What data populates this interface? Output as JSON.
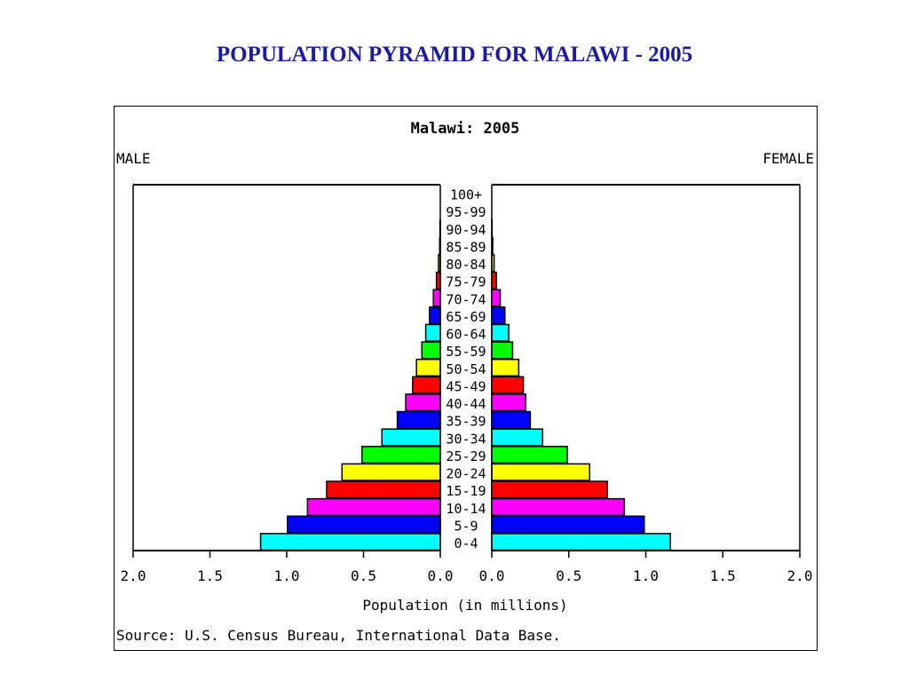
{
  "slide_title": "POPULATION PYRAMID FOR MALAWI - 2005",
  "chart_data": {
    "type": "bar",
    "orientation": "horizontal-pyramid",
    "title": "Malawi: 2005",
    "left_label": "MALE",
    "right_label": "FEMALE",
    "xlabel": "Population (in millions)",
    "source": "Source: U.S. Census Bureau, International Data Base.",
    "xlim": [
      0,
      2.0
    ],
    "left_ticks": [
      "2.0",
      "1.5",
      "1.0",
      "0.5",
      "0.0"
    ],
    "right_ticks": [
      "0.0",
      "0.5",
      "1.0",
      "1.5",
      "2.0"
    ],
    "tick_values": [
      2.0,
      1.5,
      1.0,
      0.5,
      0.0
    ],
    "categories": [
      "100+",
      "95-99",
      "90-94",
      "85-89",
      "80-84",
      "75-79",
      "70-74",
      "65-69",
      "60-64",
      "55-59",
      "50-54",
      "45-49",
      "40-44",
      "35-39",
      "30-34",
      "25-29",
      "20-24",
      "15-19",
      "10-14",
      "5-9",
      "0-4"
    ],
    "series": [
      {
        "name": "MALE",
        "values": [
          0.0,
          0.0,
          0.002,
          0.004,
          0.012,
          0.025,
          0.045,
          0.07,
          0.095,
          0.12,
          0.155,
          0.18,
          0.225,
          0.28,
          0.38,
          0.51,
          0.64,
          0.74,
          0.865,
          0.995,
          1.17
        ]
      },
      {
        "name": "FEMALE",
        "values": [
          0.0,
          0.0,
          0.002,
          0.006,
          0.015,
          0.03,
          0.055,
          0.085,
          0.11,
          0.135,
          0.175,
          0.205,
          0.22,
          0.25,
          0.33,
          0.49,
          0.635,
          0.75,
          0.86,
          0.99,
          1.16
        ]
      }
    ],
    "bar_colors": [
      "#ff00ff",
      "#0000ff",
      "#00ffff",
      "#00ff00",
      "#ffff00",
      "#ff0000",
      "#ff00ff",
      "#0000ff",
      "#00ffff",
      "#00ff00",
      "#ffff00",
      "#ff0000",
      "#ff00ff",
      "#0000ff",
      "#00ffff",
      "#00ff00",
      "#ffff00",
      "#ff0000",
      "#ff00ff",
      "#0000ff",
      "#00ffff"
    ],
    "grid": false,
    "legend": "none"
  }
}
